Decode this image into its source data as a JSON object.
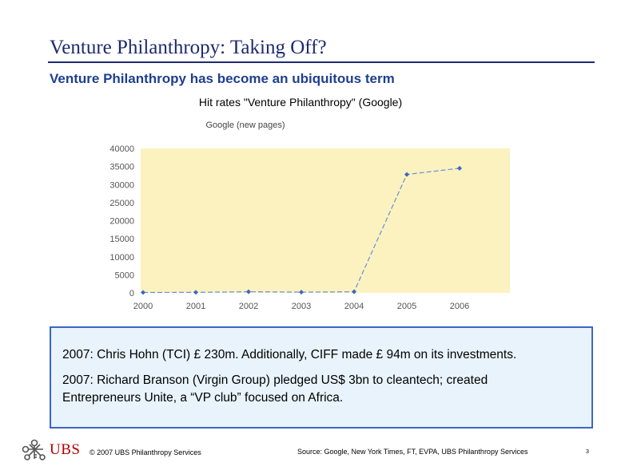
{
  "slide": {
    "title": "Venture Philanthropy: Taking Off?",
    "subtitle": "Venture Philanthropy has become an ubiquitous term",
    "caption": "Hit rates \"Venture Philanthropy\" (Google)"
  },
  "chart_data": {
    "type": "line",
    "title": "Google (new pages)",
    "categories": [
      "2000",
      "2001",
      "2002",
      "2003",
      "2004",
      "2005",
      "2006"
    ],
    "series": [
      {
        "values": [
          100,
          150,
          300,
          200,
          300,
          32800,
          34500
        ]
      }
    ],
    "ylim": [
      0,
      40000
    ],
    "yticks": [
      0,
      5000,
      10000,
      15000,
      20000,
      25000,
      30000,
      35000,
      40000
    ],
    "grid": false,
    "plot_background": "#fbf2c0",
    "line_color": "#6b8fd6",
    "marker_color": "#3f66c4"
  },
  "textbox": {
    "line1": "2007: Chris Hohn (TCI) £ 230m. Additionally, CIFF made £ 94m on its investments.",
    "line2": "2007: Richard Branson (Virgin Group) pledged US$ 3bn to cleantech; created",
    "line3": "Entrepreneurs Unite, a “VP club” focused on Africa."
  },
  "footer": {
    "logo_text": "UBS",
    "logo_icon": "ubs-keys-icon",
    "copyright": "© 2007 UBS Philanthropy Services",
    "source": "Source: Google, New York Times, FT, EVPA, UBS Philanthropy Services",
    "page": "3"
  },
  "colors": {
    "title": "#1e2a6e",
    "subtitle": "#1e3f8f",
    "box_border": "#3b66c4",
    "box_fill": "#e9f3fb",
    "logo": "#b00000"
  }
}
